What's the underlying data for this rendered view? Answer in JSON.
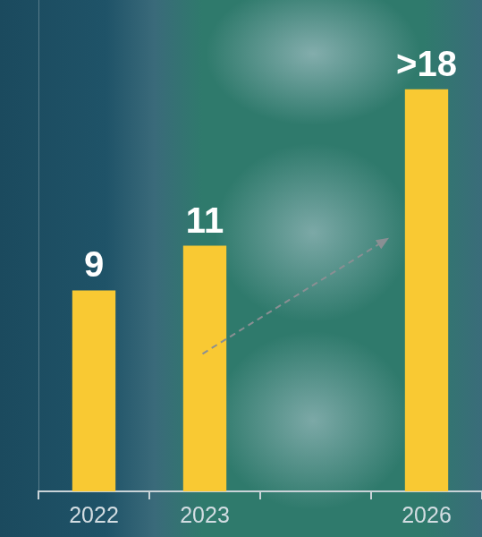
{
  "chart_data": {
    "type": "bar",
    "categories": [
      "2022",
      "2023",
      null,
      "2026"
    ],
    "values": [
      9,
      11,
      null,
      18
    ],
    "value_labels": [
      "9",
      "11",
      null,
      ">18"
    ],
    "color": "#f9c933",
    "ylim": [
      0,
      22
    ],
    "grid": false,
    "data_labels": true,
    "tick_labels": "x"
  }
}
